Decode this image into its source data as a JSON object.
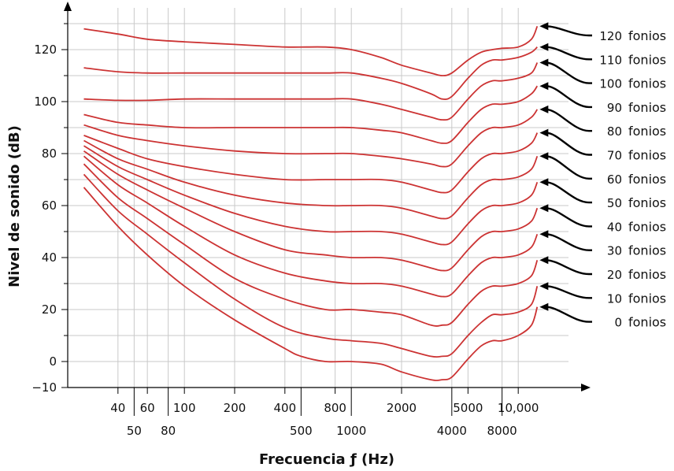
{
  "chart_data": {
    "type": "line",
    "title": "",
    "xlabel": "Frecuencia ƒ (Hz)",
    "ylabel": "Nivel de sonido (dB)",
    "x_scale": "log",
    "xlim": [
      20,
      20000
    ],
    "ylim": [
      -10,
      130
    ],
    "grid": true,
    "x_ticks_upper": [
      "40",
      "60",
      "100",
      "200",
      "400",
      "800",
      "2000",
      "5000",
      "10,000"
    ],
    "x_ticks_lower": [
      "50",
      "80",
      "500",
      "1000",
      "4000",
      "8000"
    ],
    "y_ticks": [
      "120",
      "100",
      "80",
      "60",
      "40",
      "20",
      "0",
      "−10"
    ],
    "series_unit": "fonios",
    "series": [
      {
        "name": "0",
        "points": [
          [
            25,
            67
          ],
          [
            40,
            52
          ],
          [
            60,
            41
          ],
          [
            100,
            29
          ],
          [
            200,
            16
          ],
          [
            400,
            5
          ],
          [
            500,
            2
          ],
          [
            700,
            0
          ],
          [
            1000,
            0
          ],
          [
            1500,
            -1
          ],
          [
            2000,
            -4
          ],
          [
            3000,
            -7
          ],
          [
            3500,
            -7
          ],
          [
            4000,
            -6
          ],
          [
            5000,
            1
          ],
          [
            6000,
            6
          ],
          [
            7000,
            8
          ],
          [
            8000,
            8
          ],
          [
            10000,
            10
          ],
          [
            12000,
            14
          ],
          [
            13000,
            21
          ]
        ]
      },
      {
        "name": "10",
        "points": [
          [
            25,
            72
          ],
          [
            40,
            58
          ],
          [
            60,
            49
          ],
          [
            100,
            38
          ],
          [
            200,
            24
          ],
          [
            400,
            13
          ],
          [
            700,
            9
          ],
          [
            1000,
            8
          ],
          [
            1500,
            7
          ],
          [
            2000,
            5
          ],
          [
            3000,
            2
          ],
          [
            3500,
            2
          ],
          [
            4000,
            3
          ],
          [
            5000,
            10
          ],
          [
            6000,
            15
          ],
          [
            7000,
            18
          ],
          [
            8000,
            18
          ],
          [
            10000,
            19
          ],
          [
            12000,
            22
          ],
          [
            13000,
            29
          ]
        ]
      },
      {
        "name": "20",
        "points": [
          [
            25,
            76
          ],
          [
            40,
            63
          ],
          [
            60,
            55
          ],
          [
            100,
            45
          ],
          [
            200,
            32
          ],
          [
            400,
            24
          ],
          [
            700,
            20
          ],
          [
            1000,
            20
          ],
          [
            1500,
            19
          ],
          [
            2000,
            18
          ],
          [
            3000,
            14
          ],
          [
            3500,
            14
          ],
          [
            4000,
            15
          ],
          [
            5000,
            22
          ],
          [
            6000,
            27
          ],
          [
            7000,
            29
          ],
          [
            8000,
            29
          ],
          [
            10000,
            30
          ],
          [
            12000,
            33
          ],
          [
            13000,
            39
          ]
        ]
      },
      {
        "name": "30",
        "points": [
          [
            25,
            79
          ],
          [
            40,
            68
          ],
          [
            60,
            61
          ],
          [
            100,
            52
          ],
          [
            200,
            41
          ],
          [
            400,
            34
          ],
          [
            700,
            31
          ],
          [
            1000,
            30
          ],
          [
            1500,
            30
          ],
          [
            2000,
            29
          ],
          [
            3000,
            26
          ],
          [
            3500,
            25
          ],
          [
            4000,
            26
          ],
          [
            5000,
            33
          ],
          [
            6000,
            38
          ],
          [
            7000,
            40
          ],
          [
            8000,
            40
          ],
          [
            10000,
            41
          ],
          [
            12000,
            44
          ],
          [
            13000,
            49
          ]
        ]
      },
      {
        "name": "40",
        "points": [
          [
            25,
            81
          ],
          [
            40,
            72
          ],
          [
            60,
            66
          ],
          [
            100,
            59
          ],
          [
            200,
            50
          ],
          [
            400,
            43
          ],
          [
            700,
            41
          ],
          [
            1000,
            40
          ],
          [
            1500,
            40
          ],
          [
            2000,
            39
          ],
          [
            3000,
            36
          ],
          [
            3500,
            35
          ],
          [
            4000,
            36
          ],
          [
            5000,
            43
          ],
          [
            6000,
            48
          ],
          [
            7000,
            50
          ],
          [
            8000,
            50
          ],
          [
            10000,
            51
          ],
          [
            12000,
            54
          ],
          [
            13000,
            59
          ]
        ]
      },
      {
        "name": "50",
        "points": [
          [
            25,
            83
          ],
          [
            40,
            75
          ],
          [
            60,
            70
          ],
          [
            100,
            64
          ],
          [
            200,
            57
          ],
          [
            400,
            52
          ],
          [
            700,
            50
          ],
          [
            1000,
            50
          ],
          [
            1500,
            50
          ],
          [
            2000,
            49
          ],
          [
            3000,
            46
          ],
          [
            3500,
            45
          ],
          [
            4000,
            46
          ],
          [
            5000,
            53
          ],
          [
            6000,
            58
          ],
          [
            7000,
            60
          ],
          [
            8000,
            60
          ],
          [
            10000,
            61
          ],
          [
            12000,
            64
          ],
          [
            13000,
            69
          ]
        ]
      },
      {
        "name": "60",
        "points": [
          [
            25,
            85
          ],
          [
            40,
            78
          ],
          [
            60,
            74
          ],
          [
            100,
            69
          ],
          [
            200,
            64
          ],
          [
            400,
            61
          ],
          [
            700,
            60
          ],
          [
            1000,
            60
          ],
          [
            1500,
            60
          ],
          [
            2000,
            59
          ],
          [
            3000,
            56
          ],
          [
            3500,
            55
          ],
          [
            4000,
            56
          ],
          [
            5000,
            63
          ],
          [
            6000,
            68
          ],
          [
            7000,
            70
          ],
          [
            8000,
            70
          ],
          [
            10000,
            71
          ],
          [
            12000,
            74
          ],
          [
            13000,
            79
          ]
        ]
      },
      {
        "name": "70",
        "points": [
          [
            25,
            87
          ],
          [
            40,
            82
          ],
          [
            60,
            78
          ],
          [
            100,
            75
          ],
          [
            200,
            72
          ],
          [
            400,
            70
          ],
          [
            700,
            70
          ],
          [
            1000,
            70
          ],
          [
            1500,
            70
          ],
          [
            2000,
            69
          ],
          [
            3000,
            66
          ],
          [
            3500,
            65
          ],
          [
            4000,
            66
          ],
          [
            5000,
            73
          ],
          [
            6000,
            78
          ],
          [
            7000,
            80
          ],
          [
            8000,
            80
          ],
          [
            10000,
            81
          ],
          [
            12000,
            84
          ],
          [
            13000,
            88
          ]
        ]
      },
      {
        "name": "80",
        "points": [
          [
            25,
            91
          ],
          [
            40,
            87
          ],
          [
            60,
            85
          ],
          [
            100,
            83
          ],
          [
            200,
            81
          ],
          [
            400,
            80
          ],
          [
            700,
            80
          ],
          [
            1000,
            80
          ],
          [
            1500,
            79
          ],
          [
            2000,
            78
          ],
          [
            3000,
            76
          ],
          [
            3500,
            75
          ],
          [
            4000,
            76
          ],
          [
            5000,
            83
          ],
          [
            6000,
            88
          ],
          [
            7000,
            90
          ],
          [
            8000,
            90
          ],
          [
            10000,
            91
          ],
          [
            12000,
            94
          ],
          [
            13000,
            97
          ]
        ]
      },
      {
        "name": "90",
        "points": [
          [
            25,
            95
          ],
          [
            40,
            92
          ],
          [
            60,
            91
          ],
          [
            100,
            90
          ],
          [
            200,
            90
          ],
          [
            400,
            90
          ],
          [
            700,
            90
          ],
          [
            1000,
            90
          ],
          [
            1500,
            89
          ],
          [
            2000,
            88
          ],
          [
            3000,
            85
          ],
          [
            3500,
            84
          ],
          [
            4000,
            85
          ],
          [
            5000,
            92
          ],
          [
            6000,
            97
          ],
          [
            7000,
            99
          ],
          [
            8000,
            99
          ],
          [
            10000,
            100
          ],
          [
            12000,
            103
          ],
          [
            13000,
            106
          ]
        ]
      },
      {
        "name": "100",
        "points": [
          [
            25,
            101
          ],
          [
            40,
            100.5
          ],
          [
            60,
            100.5
          ],
          [
            100,
            101
          ],
          [
            200,
            101
          ],
          [
            400,
            101
          ],
          [
            700,
            101
          ],
          [
            1000,
            101
          ],
          [
            1500,
            99
          ],
          [
            2000,
            97
          ],
          [
            3000,
            94
          ],
          [
            3500,
            93
          ],
          [
            4000,
            94
          ],
          [
            5000,
            101
          ],
          [
            6000,
            106
          ],
          [
            7000,
            108
          ],
          [
            8000,
            108
          ],
          [
            10000,
            109
          ],
          [
            12000,
            111
          ],
          [
            13000,
            115
          ]
        ]
      },
      {
        "name": "110",
        "points": [
          [
            25,
            113
          ],
          [
            40,
            111.5
          ],
          [
            60,
            111
          ],
          [
            100,
            111
          ],
          [
            200,
            111
          ],
          [
            400,
            111
          ],
          [
            700,
            111
          ],
          [
            1000,
            111
          ],
          [
            1500,
            109
          ],
          [
            2000,
            107
          ],
          [
            3000,
            103
          ],
          [
            3500,
            101
          ],
          [
            4000,
            102
          ],
          [
            5000,
            109
          ],
          [
            6000,
            114
          ],
          [
            7000,
            116
          ],
          [
            8000,
            116
          ],
          [
            10000,
            117
          ],
          [
            12000,
            119
          ],
          [
            13000,
            121
          ]
        ]
      },
      {
        "name": "120",
        "points": [
          [
            25,
            128
          ],
          [
            40,
            126
          ],
          [
            60,
            124
          ],
          [
            100,
            123
          ],
          [
            200,
            122
          ],
          [
            400,
            121
          ],
          [
            700,
            121
          ],
          [
            1000,
            120
          ],
          [
            1500,
            117
          ],
          [
            2000,
            114
          ],
          [
            3000,
            111
          ],
          [
            3500,
            110
          ],
          [
            4000,
            111
          ],
          [
            5000,
            116
          ],
          [
            6000,
            119
          ],
          [
            7000,
            120
          ],
          [
            8000,
            120.5
          ],
          [
            10000,
            121
          ],
          [
            12000,
            124
          ],
          [
            13000,
            129
          ]
        ]
      }
    ]
  }
}
